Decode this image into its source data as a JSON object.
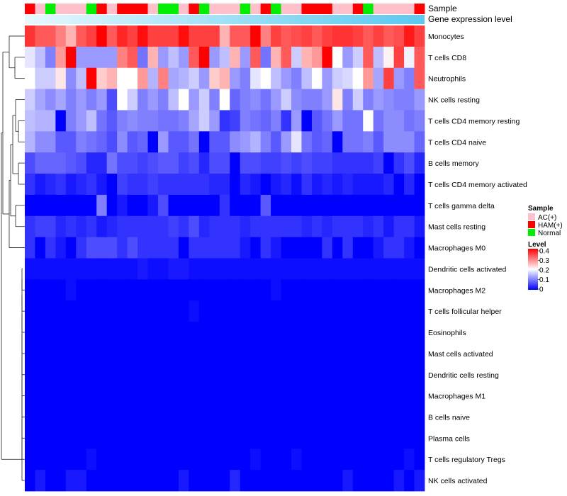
{
  "chart_data": {
    "type": "heatmap",
    "annotation_tracks": [
      "Sample",
      "Gene expression level"
    ],
    "sample_groups": [
      "AC(+)",
      "HAM(+)",
      "Normal"
    ],
    "sample_group_colors": {
      "AC(+)": "#ffc0cb",
      "HAM(+)": "#ff0000",
      "Normal": "#00ee00"
    },
    "sample_annotation": [
      1,
      0,
      2,
      0,
      0,
      0,
      2,
      1,
      0,
      1,
      1,
      1,
      0,
      2,
      2,
      0,
      1,
      2,
      0,
      0,
      0,
      2,
      0,
      1,
      2,
      0,
      0,
      1,
      1,
      1,
      0,
      0,
      1,
      2,
      0,
      0,
      0,
      0,
      1
    ],
    "gene_expression_bar": {
      "start_color": "#e6f8fd",
      "end_color": "#5bc8ee"
    },
    "legend": {
      "sample_title": "Sample",
      "sample_entries": [
        "AC(+)",
        "HAM(+)",
        "Normal"
      ],
      "level_title": "Level",
      "level_ticks": [
        "0.4",
        "0.3",
        "0.2",
        "0.1",
        "0"
      ]
    },
    "value_range": [
      0,
      0.4
    ],
    "color_scale": [
      "#0000ff",
      "#ffffff",
      "#ff0000"
    ],
    "rows": [
      "Monocytes",
      "T cells CD8",
      "Neutrophils",
      "NK cells resting",
      "T cells CD4 memory resting",
      "T cells CD4 naive",
      "B cells memory",
      "T cells CD4 memory activated",
      "T cells gamma delta",
      "Mast cells resting",
      "Macrophages M0",
      "Dendritic cells activated",
      "Macrophages M2",
      "T cells follicular helper",
      "Eosinophils",
      "Mast cells activated",
      "Dendritic cells resting",
      "Macrophages M1",
      "B cells naive",
      "Plasma cells",
      "T cells regulatory  Tregs",
      "NK cells activated"
    ],
    "values": [
      [
        0.36,
        0.33,
        0.33,
        0.3,
        0.26,
        0.33,
        0.35,
        0.4,
        0.33,
        0.37,
        0.35,
        0.39,
        0.35,
        0.35,
        0.35,
        0.39,
        0.35,
        0.35,
        0.35,
        0.26,
        0.33,
        0.33,
        0.4,
        0.3,
        0.35,
        0.33,
        0.34,
        0.35,
        0.33,
        0.35,
        0.36,
        0.36,
        0.35,
        0.33,
        0.35,
        0.33,
        0.34,
        0.38,
        0.35
      ],
      [
        0.18,
        0.15,
        0.1,
        0.28,
        0.4,
        0.12,
        0.12,
        0.12,
        0.12,
        0.3,
        0.33,
        0.09,
        0.26,
        0.12,
        0.15,
        0.12,
        0.33,
        0.4,
        0.12,
        0.15,
        0.26,
        0.12,
        0.33,
        0.09,
        0.26,
        0.33,
        0.16,
        0.26,
        0.28,
        0.4,
        0.2,
        0.12,
        0.16,
        0.33,
        0.15,
        0.21,
        0.35,
        0.19,
        0.33
      ],
      [
        0.2,
        0.16,
        0.16,
        0.22,
        0.11,
        0.15,
        0.4,
        0.24,
        0.26,
        0.2,
        0.2,
        0.28,
        0.14,
        0.3,
        0.13,
        0.14,
        0.16,
        0.12,
        0.24,
        0.26,
        0.12,
        0.1,
        0.18,
        0.2,
        0.15,
        0.12,
        0.1,
        0.15,
        0.2,
        0.12,
        0.16,
        0.17,
        0.2,
        0.28,
        0.13,
        0.35,
        0.12,
        0.1,
        0.33
      ],
      [
        0.16,
        0.13,
        0.11,
        0.13,
        0.1,
        0.12,
        0.1,
        0.12,
        0.06,
        0.2,
        0.16,
        0.1,
        0.12,
        0.1,
        0.15,
        0.2,
        0.12,
        0.16,
        0.1,
        0.2,
        0.08,
        0.1,
        0.11,
        0.09,
        0.12,
        0.16,
        0.11,
        0.1,
        0.1,
        0.12,
        0.22,
        0.1,
        0.16,
        0.1,
        0.12,
        0.11,
        0.1,
        0.1,
        0.12
      ],
      [
        0.15,
        0.14,
        0.14,
        0.0,
        0.1,
        0.12,
        0.15,
        0.09,
        0.07,
        0.1,
        0.11,
        0.1,
        0.1,
        0.09,
        0.09,
        0.1,
        0.13,
        0.16,
        0.12,
        0.04,
        0.05,
        0.1,
        0.09,
        0.08,
        0.1,
        0.04,
        0.12,
        0.0,
        0.07,
        0.09,
        0.12,
        0.09,
        0.09,
        0.2,
        0.09,
        0.11,
        0.11,
        0.09,
        0.1
      ],
      [
        0.14,
        0.11,
        0.11,
        0.07,
        0.07,
        0.1,
        0.09,
        0.08,
        0.06,
        0.11,
        0.07,
        0.08,
        0.0,
        0.12,
        0.07,
        0.07,
        0.09,
        0.0,
        0.07,
        0.07,
        0.11,
        0.12,
        0.14,
        0.1,
        0.07,
        0.12,
        0.18,
        0.09,
        0.07,
        0.08,
        0.0,
        0.09,
        0.09,
        0.1,
        0.07,
        0.11,
        0.11,
        0.11,
        0.08
      ],
      [
        0.06,
        0.08,
        0.08,
        0.08,
        0.07,
        0.06,
        0.03,
        0.03,
        0.09,
        0.06,
        0.06,
        0.05,
        0.06,
        0.07,
        0.07,
        0.05,
        0.06,
        0.03,
        0.06,
        0.06,
        0.0,
        0.06,
        0.06,
        0.05,
        0.05,
        0.06,
        0.05,
        0.06,
        0.05,
        0.05,
        0.04,
        0.04,
        0.04,
        0.04,
        0.05,
        0.0,
        0.04,
        0.06,
        0.03
      ],
      [
        0.04,
        0.02,
        0.03,
        0.04,
        0.02,
        0.03,
        0.04,
        0.02,
        0.0,
        0.05,
        0.04,
        0.04,
        0.05,
        0.04,
        0.04,
        0.04,
        0.04,
        0.04,
        0.03,
        0.03,
        0.0,
        0.03,
        0.02,
        0.0,
        0.02,
        0.03,
        0.01,
        0.04,
        0.02,
        0.03,
        0.02,
        0.03,
        0.02,
        0.02,
        0.02,
        0.03,
        0.0,
        0.03,
        0.0
      ],
      [
        0.0,
        0.0,
        0.0,
        0.0,
        0.0,
        0.0,
        0.0,
        0.1,
        0.0,
        0.02,
        0.0,
        0.0,
        0.02,
        0.06,
        0.0,
        0.0,
        0.0,
        0.0,
        0.0,
        0.04,
        0.0,
        0.0,
        0.0,
        0.07,
        0.0,
        0.0,
        0.0,
        0.0,
        0.0,
        0.0,
        0.0,
        0.0,
        0.0,
        0.0,
        0.0,
        0.0,
        0.0,
        0.0,
        0.0
      ],
      [
        0.04,
        0.05,
        0.05,
        0.03,
        0.04,
        0.03,
        0.04,
        0.02,
        0.03,
        0.04,
        0.04,
        0.04,
        0.04,
        0.04,
        0.05,
        0.04,
        0.06,
        0.03,
        0.04,
        0.04,
        0.04,
        0.03,
        0.04,
        0.04,
        0.04,
        0.04,
        0.04,
        0.03,
        0.04,
        0.03,
        0.04,
        0.04,
        0.04,
        0.03,
        0.04,
        0.02,
        0.04,
        0.04,
        0.02
      ],
      [
        0.04,
        0.0,
        0.04,
        0.02,
        0.0,
        0.04,
        0.06,
        0.06,
        0.06,
        0.04,
        0.06,
        0.04,
        0.04,
        0.04,
        0.04,
        0.0,
        0.04,
        0.04,
        0.04,
        0.04,
        0.04,
        0.02,
        0.0,
        0.04,
        0.02,
        0.0,
        0.0,
        0.0,
        0.0,
        0.04,
        0.0,
        0.04,
        0.0,
        0.0,
        0.02,
        0.04,
        0.04,
        0.02,
        0.0
      ],
      [
        0.01,
        0.01,
        0.01,
        0.01,
        0.01,
        0.01,
        0.01,
        0.01,
        0.01,
        0.01,
        0.01,
        0.02,
        0.01,
        0.01,
        0.02,
        0.02,
        0.01,
        0.01,
        0.01,
        0.01,
        0.01,
        0.01,
        0.01,
        0.01,
        0.01,
        0.01,
        0.01,
        0.01,
        0.01,
        0.01,
        0.01,
        0.01,
        0.01,
        0.01,
        0.01,
        0.01,
        0.01,
        0.01,
        0.01
      ],
      [
        0.0,
        0.0,
        0.0,
        0.0,
        0.01,
        0.0,
        0.0,
        0.0,
        0.0,
        0.0,
        0.0,
        0.0,
        0.0,
        0.0,
        0.0,
        0.0,
        0.0,
        0.0,
        0.0,
        0.0,
        0.0,
        0.0,
        0.0,
        0.0,
        0.01,
        0.0,
        0.0,
        0.0,
        0.0,
        0.0,
        0.0,
        0.0,
        0.0,
        0.0,
        0.0,
        0.0,
        0.0,
        0.0,
        0.0
      ],
      [
        0.0,
        0.0,
        0.0,
        0.0,
        0.0,
        0.0,
        0.0,
        0.0,
        0.0,
        0.0,
        0.0,
        0.0,
        0.0,
        0.0,
        0.0,
        0.0,
        0.01,
        0.0,
        0.0,
        0.0,
        0.0,
        0.0,
        0.0,
        0.0,
        0.0,
        0.0,
        0.0,
        0.0,
        0.0,
        0.0,
        0.0,
        0.0,
        0.0,
        0.0,
        0.0,
        0.0,
        0.0,
        0.0,
        0.0
      ],
      [
        0.0,
        0.0,
        0.0,
        0.0,
        0.0,
        0.0,
        0.0,
        0.0,
        0.0,
        0.0,
        0.0,
        0.0,
        0.0,
        0.0,
        0.0,
        0.0,
        0.0,
        0.0,
        0.0,
        0.0,
        0.0,
        0.0,
        0.0,
        0.0,
        0.0,
        0.0,
        0.0,
        0.0,
        0.0,
        0.0,
        0.0,
        0.0,
        0.0,
        0.0,
        0.0,
        0.0,
        0.0,
        0.0,
        0.0
      ],
      [
        0.0,
        0.0,
        0.0,
        0.0,
        0.0,
        0.0,
        0.0,
        0.0,
        0.0,
        0.0,
        0.0,
        0.0,
        0.0,
        0.0,
        0.0,
        0.0,
        0.0,
        0.0,
        0.0,
        0.0,
        0.0,
        0.0,
        0.0,
        0.0,
        0.0,
        0.0,
        0.0,
        0.0,
        0.0,
        0.0,
        0.0,
        0.0,
        0.0,
        0.0,
        0.0,
        0.0,
        0.0,
        0.0,
        0.0
      ],
      [
        0.0,
        0.0,
        0.0,
        0.0,
        0.0,
        0.0,
        0.0,
        0.0,
        0.0,
        0.0,
        0.0,
        0.0,
        0.0,
        0.0,
        0.0,
        0.0,
        0.0,
        0.0,
        0.0,
        0.0,
        0.0,
        0.0,
        0.0,
        0.0,
        0.0,
        0.0,
        0.0,
        0.0,
        0.0,
        0.0,
        0.0,
        0.0,
        0.0,
        0.0,
        0.0,
        0.0,
        0.0,
        0.0,
        0.0
      ],
      [
        0.0,
        0.0,
        0.0,
        0.0,
        0.0,
        0.0,
        0.0,
        0.0,
        0.0,
        0.0,
        0.0,
        0.0,
        0.0,
        0.0,
        0.0,
        0.0,
        0.0,
        0.0,
        0.0,
        0.0,
        0.0,
        0.0,
        0.0,
        0.0,
        0.0,
        0.0,
        0.0,
        0.0,
        0.0,
        0.0,
        0.0,
        0.0,
        0.0,
        0.0,
        0.0,
        0.0,
        0.0,
        0.0,
        0.0
      ],
      [
        0.0,
        0.0,
        0.0,
        0.0,
        0.0,
        0.0,
        0.0,
        0.0,
        0.0,
        0.0,
        0.0,
        0.0,
        0.0,
        0.0,
        0.0,
        0.0,
        0.0,
        0.0,
        0.0,
        0.0,
        0.0,
        0.0,
        0.0,
        0.0,
        0.0,
        0.0,
        0.0,
        0.0,
        0.0,
        0.0,
        0.0,
        0.0,
        0.0,
        0.0,
        0.0,
        0.0,
        0.0,
        0.0,
        0.0
      ],
      [
        0.0,
        0.0,
        0.0,
        0.0,
        0.0,
        0.0,
        0.0,
        0.0,
        0.0,
        0.0,
        0.0,
        0.0,
        0.0,
        0.0,
        0.0,
        0.0,
        0.0,
        0.0,
        0.0,
        0.0,
        0.0,
        0.0,
        0.0,
        0.0,
        0.0,
        0.0,
        0.0,
        0.0,
        0.0,
        0.0,
        0.0,
        0.0,
        0.0,
        0.0,
        0.0,
        0.0,
        0.0,
        0.0,
        0.0
      ],
      [
        0.0,
        0.0,
        0.0,
        0.0,
        0.0,
        0.0,
        0.01,
        0.0,
        0.0,
        0.0,
        0.0,
        0.0,
        0.0,
        0.0,
        0.0,
        0.0,
        0.0,
        0.0,
        0.0,
        0.0,
        0.0,
        0.0,
        0.01,
        0.0,
        0.0,
        0.0,
        0.01,
        0.0,
        0.0,
        0.0,
        0.0,
        0.0,
        0.0,
        0.0,
        0.0,
        0.0,
        0.0,
        0.01,
        0.0
      ],
      [
        0.0,
        0.02,
        0.0,
        0.0,
        0.02,
        0.02,
        0.0,
        0.0,
        0.0,
        0.0,
        0.0,
        0.0,
        0.0,
        0.0,
        0.0,
        0.02,
        0.0,
        0.0,
        0.0,
        0.0,
        0.03,
        0.0,
        0.0,
        0.0,
        0.0,
        0.0,
        0.0,
        0.0,
        0.0,
        0.0,
        0.0,
        0.02,
        0.0,
        0.0,
        0.0,
        0.0,
        0.02,
        0.0,
        0.02
      ]
    ]
  }
}
